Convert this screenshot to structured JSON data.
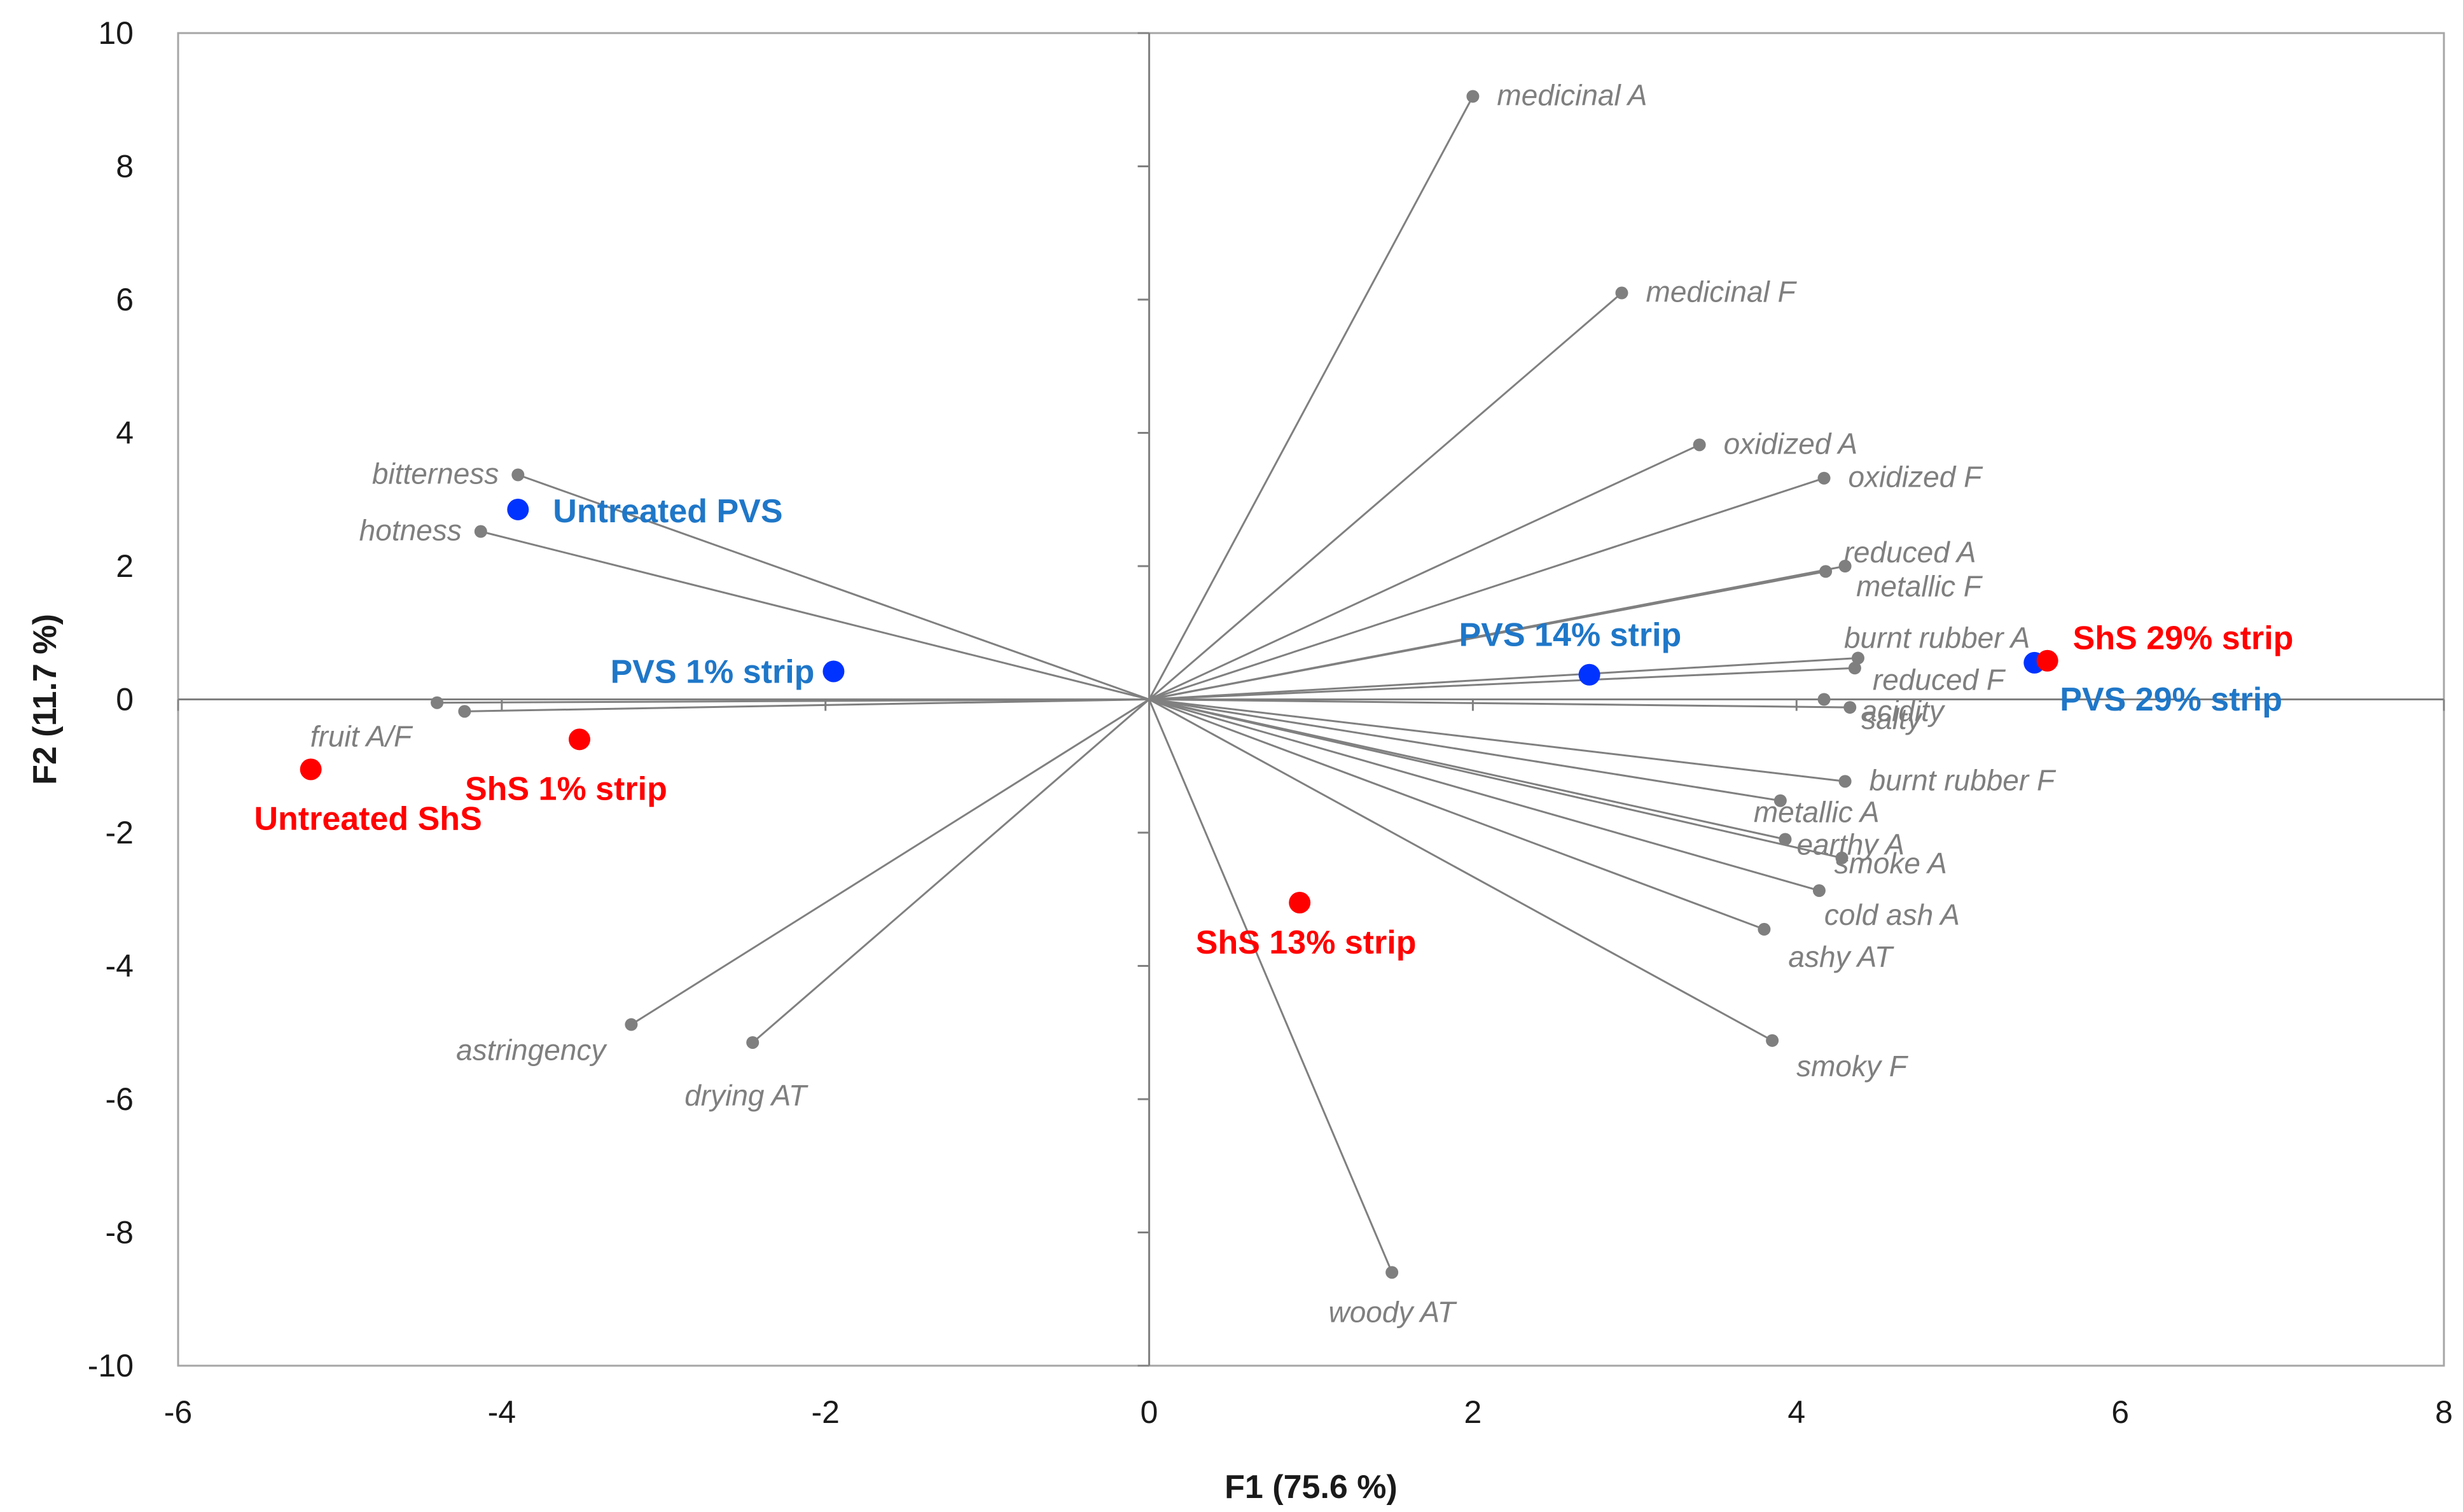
{
  "chart_data": {
    "type": "scatter",
    "subtype": "PCA biplot",
    "title": "",
    "xlabel": "F1 (75.6 %)",
    "ylabel": "F2 (11.7 %)",
    "xlim": [
      -6,
      8
    ],
    "ylim": [
      -10,
      10
    ],
    "xticks": [
      -6,
      -4,
      -2,
      0,
      2,
      4,
      6,
      8
    ],
    "yticks": [
      -10,
      -8,
      -6,
      -4,
      -2,
      0,
      2,
      4,
      6,
      8,
      10
    ],
    "grid": false,
    "colors": {
      "line": "#808080",
      "marker": "#7f7f7f",
      "label": "#7f7f7f",
      "red": "#ff0000",
      "blue": "#0033ff",
      "blue_label": "#1f77c8",
      "axis": "#808080",
      "frame": "#a6a6a6"
    },
    "variables": [
      {
        "name": "medicinal A",
        "x": 2.0,
        "y": 9.05,
        "anchor": "start"
      },
      {
        "name": "medicinal F",
        "x": 2.92,
        "y": 6.1,
        "anchor": "start"
      },
      {
        "name": "oxidized A",
        "x": 3.4,
        "y": 3.82,
        "anchor": "start"
      },
      {
        "name": "oxidized F",
        "x": 4.17,
        "y": 3.32,
        "anchor": "start"
      },
      {
        "name": "reduced A",
        "x": 4.3,
        "y": 2.0,
        "anchor": "start"
      },
      {
        "name": "metallic F",
        "x": 4.18,
        "y": 1.92,
        "anchor": "start"
      },
      {
        "name": "burnt rubber A",
        "x": 4.38,
        "y": 0.62,
        "anchor": "start"
      },
      {
        "name": "reduced F",
        "x": 4.36,
        "y": 0.47,
        "anchor": "start"
      },
      {
        "name": "acidity",
        "x": 4.17,
        "y": 0.0,
        "anchor": "start"
      },
      {
        "name": "salty",
        "x": 4.33,
        "y": -0.12,
        "anchor": "start"
      },
      {
        "name": "burnt rubber F",
        "x": 4.3,
        "y": -1.23,
        "anchor": "start"
      },
      {
        "name": "metallic A",
        "x": 3.9,
        "y": -1.52,
        "anchor": "start"
      },
      {
        "name": "earthy A",
        "x": 3.93,
        "y": -2.1,
        "anchor": "start"
      },
      {
        "name": "smoke A",
        "x": 4.28,
        "y": -2.38,
        "anchor": "start"
      },
      {
        "name": "cold ash A",
        "x": 4.14,
        "y": -2.87,
        "anchor": "start"
      },
      {
        "name": "ashy AT",
        "x": 3.8,
        "y": -3.45,
        "anchor": "start"
      },
      {
        "name": "smoky F",
        "x": 3.85,
        "y": -5.12,
        "anchor": "start"
      },
      {
        "name": "woody AT",
        "x": 1.5,
        "y": -8.6,
        "anchor": "middle"
      },
      {
        "name": "bitterness",
        "x": -3.9,
        "y": 3.37,
        "anchor": "end"
      },
      {
        "name": "hotness",
        "x": -4.13,
        "y": 2.52,
        "anchor": "end"
      },
      {
        "name": "fruit A/F",
        "x": -4.4,
        "y": -0.05,
        "anchor": "end"
      },
      {
        "name": "",
        "x": -4.23,
        "y": -0.18,
        "anchor": "end"
      },
      {
        "name": "astringency",
        "x": -3.2,
        "y": -4.88,
        "anchor": "end"
      },
      {
        "name": "drying AT",
        "x": -2.45,
        "y": -5.15,
        "anchor": "start"
      }
    ],
    "observations": [
      {
        "name": "Untreated PVS",
        "x": -3.9,
        "y": 2.85,
        "group": "PVS"
      },
      {
        "name": "PVS 1% strip",
        "x": -1.95,
        "y": 0.42,
        "group": "PVS"
      },
      {
        "name": "PVS 14% strip",
        "x": 2.72,
        "y": 0.37,
        "group": "PVS"
      },
      {
        "name": "PVS 29% strip",
        "x": 5.47,
        "y": 0.55,
        "group": "PVS"
      },
      {
        "name": "Untreated ShS",
        "x": -5.18,
        "y": -1.05,
        "group": "ShS"
      },
      {
        "name": "ShS 1% strip",
        "x": -3.52,
        "y": -0.6,
        "group": "ShS"
      },
      {
        "name": "ShS 13% strip",
        "x": 0.93,
        "y": -3.05,
        "group": "ShS"
      },
      {
        "name": "ShS 29% strip",
        "x": 5.55,
        "y": 0.58,
        "group": "ShS"
      }
    ]
  }
}
